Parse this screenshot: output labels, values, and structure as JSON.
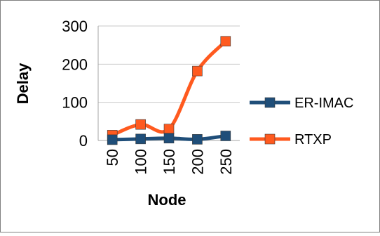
{
  "chart_data": {
    "type": "line",
    "title": "",
    "xlabel": "Node",
    "ylabel": "Delay",
    "categories": [
      "50",
      "100",
      "150",
      "200",
      "250"
    ],
    "ylim": [
      0,
      300
    ],
    "yticks": [
      "0",
      "100",
      "200",
      "300"
    ],
    "grid": "horizontal",
    "legend_position": "right",
    "series": [
      {
        "name": "ER-IMAC",
        "color": "#1F4E79",
        "values": [
          2,
          4,
          6,
          3,
          12
        ]
      },
      {
        "name": "RTXP",
        "color": "#FF5A1F",
        "values": [
          14,
          42,
          30,
          182,
          260
        ]
      }
    ]
  }
}
